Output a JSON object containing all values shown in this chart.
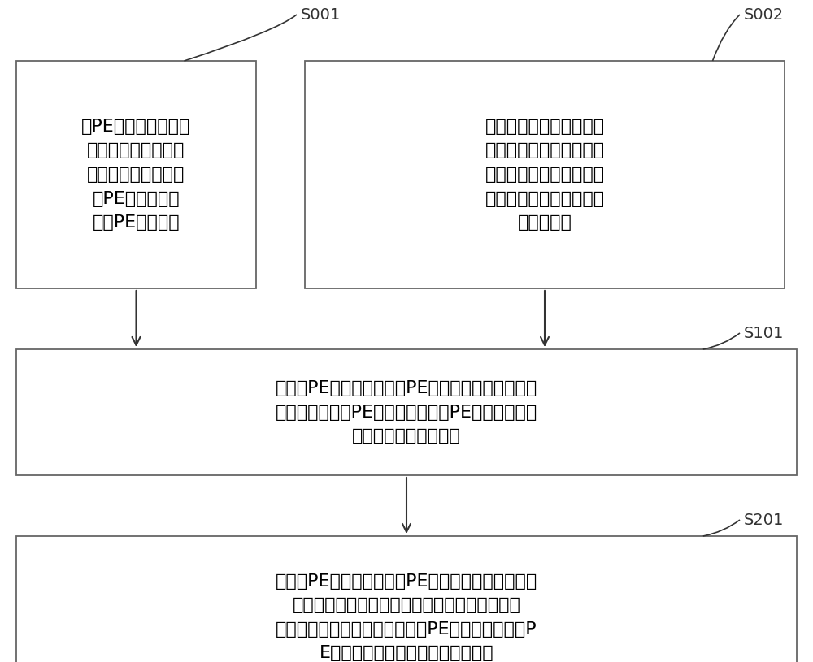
{
  "background_color": "#ffffff",
  "box_border_color": "#666666",
  "box_bg_color": "#ffffff",
  "arrow_color": "#333333",
  "label_color": "#333333",
  "box1_text": "将PE材质膜原料裁切\n成需要的尺寸，并做\n除静电处理，得到第\n一PE材质膜片和\n第二PE材质膜片",
  "box2_text": "将纯水流道布原料和浓水\n流道布原料裁切成需要的\n尺寸，并分别做除静电处\n理，得到纯水流道布和浓\n水流道布。",
  "box3_text": "在第一PE材质膜片和第二PE材质膜片之间夹设浓水\n流道布，在第一PE材质膜片或第二PE材质膜片的外\n侧表面放置纯水流道布",
  "box4_text": "在第一PE材质膜片和第二PE材质膜片的至少两个相\n对应的边角处分别设置焊接区域，在该焊接区域\n，通过焊接将纯水流道布、第一PE材质膜片、第二P\nE材质膜片和浓水流道布焊接在一起",
  "label1": "S001",
  "label2": "S002",
  "label3": "S101",
  "label4": "S201",
  "font_size_box": 16,
  "font_size_label": 14
}
